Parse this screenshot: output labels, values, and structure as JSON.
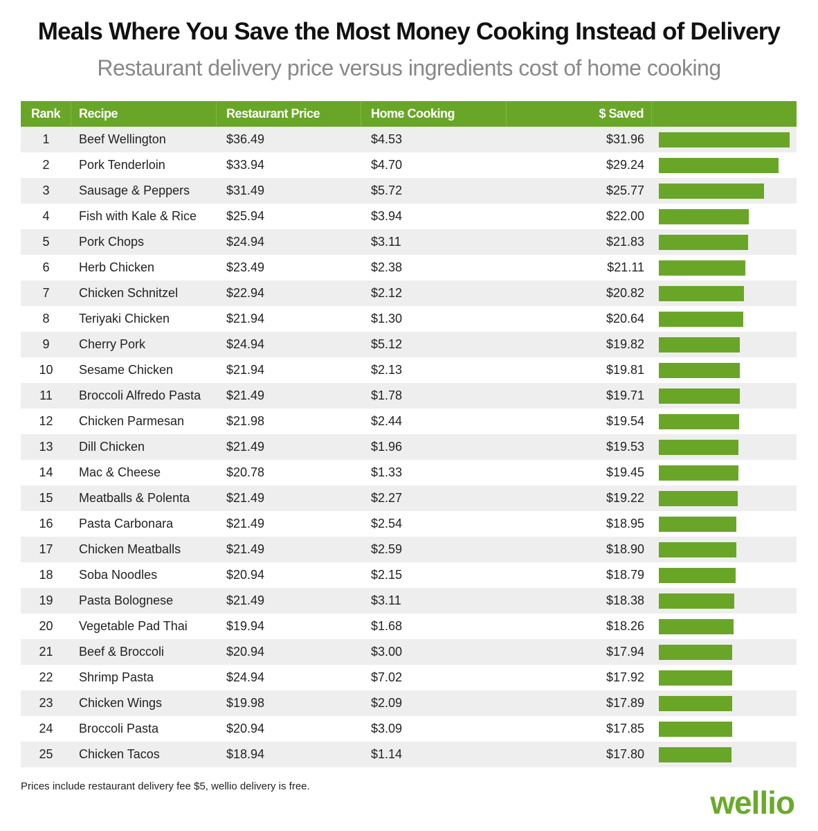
{
  "chart_data": {
    "type": "table",
    "title": "Meals Where You Save the Most Money Cooking Instead of Delivery",
    "subtitle": "Restaurant delivery price versus ingredients cost of home cooking",
    "columns": [
      "Rank",
      "Recipe",
      "Restaurant Price",
      "Home Cooking",
      "$ Saved"
    ],
    "bar_color": "#69a628",
    "header_color": "#69a628",
    "rows": [
      {
        "rank": "1",
        "recipe": "Beef Wellington",
        "restaurant": "$36.49",
        "home": "$4.53",
        "saved": "$31.96",
        "saved_value": 31.96
      },
      {
        "rank": "2",
        "recipe": "Pork Tenderloin",
        "restaurant": "$33.94",
        "home": "$4.70",
        "saved": "$29.24",
        "saved_value": 29.24
      },
      {
        "rank": "3",
        "recipe": "Sausage & Peppers",
        "restaurant": "$31.49",
        "home": "$5.72",
        "saved": "$25.77",
        "saved_value": 25.77
      },
      {
        "rank": "4",
        "recipe": "Fish with Kale & Rice",
        "restaurant": "$25.94",
        "home": "$3.94",
        "saved": "$22.00",
        "saved_value": 22.0
      },
      {
        "rank": "5",
        "recipe": "Pork Chops",
        "restaurant": "$24.94",
        "home": "$3.11",
        "saved": "$21.83",
        "saved_value": 21.83
      },
      {
        "rank": "6",
        "recipe": "Herb Chicken",
        "restaurant": "$23.49",
        "home": "$2.38",
        "saved": "$21.11",
        "saved_value": 21.11
      },
      {
        "rank": "7",
        "recipe": "Chicken Schnitzel",
        "restaurant": "$22.94",
        "home": "$2.12",
        "saved": "$20.82",
        "saved_value": 20.82
      },
      {
        "rank": "8",
        "recipe": "Teriyaki Chicken",
        "restaurant": "$21.94",
        "home": "$1.30",
        "saved": "$20.64",
        "saved_value": 20.64
      },
      {
        "rank": "9",
        "recipe": "Cherry Pork",
        "restaurant": "$24.94",
        "home": "$5.12",
        "saved": "$19.82",
        "saved_value": 19.82
      },
      {
        "rank": "10",
        "recipe": "Sesame Chicken",
        "restaurant": "$21.94",
        "home": "$2.13",
        "saved": "$19.81",
        "saved_value": 19.81
      },
      {
        "rank": "11",
        "recipe": "Broccoli Alfredo Pasta",
        "restaurant": "$21.49",
        "home": "$1.78",
        "saved": "$19.71",
        "saved_value": 19.71
      },
      {
        "rank": "12",
        "recipe": "Chicken Parmesan",
        "restaurant": "$21.98",
        "home": "$2.44",
        "saved": "$19.54",
        "saved_value": 19.54
      },
      {
        "rank": "13",
        "recipe": "Dill Chicken",
        "restaurant": "$21.49",
        "home": "$1.96",
        "saved": "$19.53",
        "saved_value": 19.53
      },
      {
        "rank": "14",
        "recipe": "Mac & Cheese",
        "restaurant": "$20.78",
        "home": "$1.33",
        "saved": "$19.45",
        "saved_value": 19.45
      },
      {
        "rank": "15",
        "recipe": "Meatballs & Polenta",
        "restaurant": "$21.49",
        "home": "$2.27",
        "saved": "$19.22",
        "saved_value": 19.22
      },
      {
        "rank": "16",
        "recipe": "Pasta Carbonara",
        "restaurant": "$21.49",
        "home": "$2.54",
        "saved": "$18.95",
        "saved_value": 18.95
      },
      {
        "rank": "17",
        "recipe": "Chicken Meatballs",
        "restaurant": "$21.49",
        "home": "$2.59",
        "saved": "$18.90",
        "saved_value": 18.9
      },
      {
        "rank": "18",
        "recipe": "Soba Noodles",
        "restaurant": "$20.94",
        "home": "$2.15",
        "saved": "$18.79",
        "saved_value": 18.79
      },
      {
        "rank": "19",
        "recipe": "Pasta Bolognese",
        "restaurant": "$21.49",
        "home": "$3.11",
        "saved": "$18.38",
        "saved_value": 18.38
      },
      {
        "rank": "20",
        "recipe": "Vegetable Pad Thai",
        "restaurant": "$19.94",
        "home": "$1.68",
        "saved": "$18.26",
        "saved_value": 18.26
      },
      {
        "rank": "21",
        "recipe": "Beef & Broccoli",
        "restaurant": "$20.94",
        "home": "$3.00",
        "saved": "$17.94",
        "saved_value": 17.94
      },
      {
        "rank": "22",
        "recipe": "Shrimp Pasta",
        "restaurant": "$24.94",
        "home": "$7.02",
        "saved": "$17.92",
        "saved_value": 17.92
      },
      {
        "rank": "23",
        "recipe": "Chicken Wings",
        "restaurant": "$19.98",
        "home": "$2.09",
        "saved": "$17.89",
        "saved_value": 17.89
      },
      {
        "rank": "24",
        "recipe": "Broccoli Pasta",
        "restaurant": "$20.94",
        "home": "$3.09",
        "saved": "$17.85",
        "saved_value": 17.85
      },
      {
        "rank": "25",
        "recipe": "Chicken Tacos",
        "restaurant": "$18.94",
        "home": "$1.14",
        "saved": "$17.80",
        "saved_value": 17.8
      }
    ]
  },
  "footer": {
    "note": "Prices include restaurant delivery fee $5, wellio delivery is free.",
    "logo": "wellio"
  }
}
